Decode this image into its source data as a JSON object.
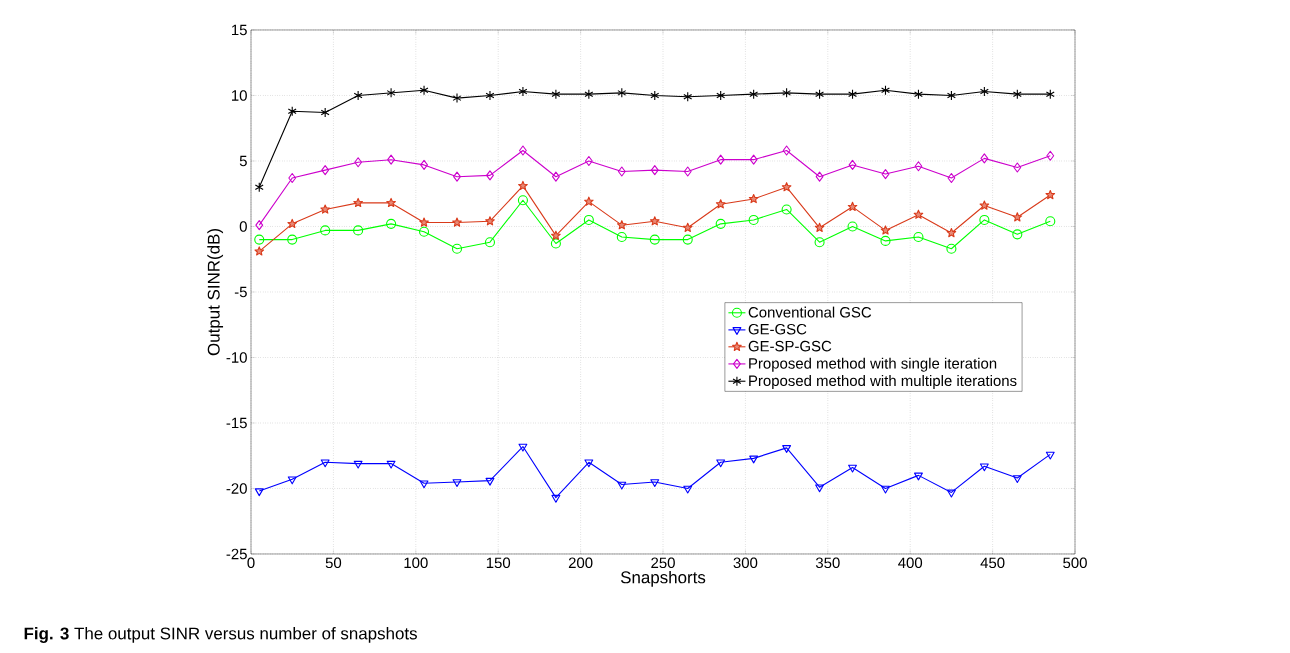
{
  "chart_data": {
    "type": "line",
    "xlabel": "Snapshorts",
    "ylabel": "Output SINR(dB)",
    "annotations": [
      "**Fig. 3** The output SINR versus number of snapshots"
    ],
    "x": [
      5,
      25,
      45,
      65,
      85,
      105,
      125,
      145,
      165,
      185,
      205,
      225,
      245,
      265,
      285,
      305,
      325,
      345,
      365,
      385,
      405,
      425,
      445,
      465,
      485
    ],
    "series": [
      {
        "name": "Conventional GSC",
        "color": "#00ff00",
        "marker": "circle",
        "values": [
          -1.0,
          -1.0,
          -0.3,
          -0.3,
          0.2,
          -0.4,
          -1.7,
          -1.2,
          2.0,
          -1.3,
          0.5,
          -0.8,
          -1.0,
          -1.0,
          0.2,
          0.5,
          1.3,
          -1.2,
          0.0,
          -1.1,
          -0.8,
          -1.7,
          0.5,
          -0.6,
          0.4
        ]
      },
      {
        "name": "GE-GSC",
        "color": "#0000ff",
        "marker": "triangle",
        "values": [
          -20.2,
          -19.3,
          -18.0,
          -18.1,
          -18.1,
          -19.6,
          -19.5,
          -19.4,
          -16.8,
          -20.7,
          -18.0,
          -19.7,
          -19.5,
          -20.0,
          -18.0,
          -17.7,
          -16.9,
          -19.9,
          -18.4,
          -20.0,
          -19.0,
          -20.3,
          -18.3,
          -19.2,
          -17.4
        ]
      },
      {
        "name": "GE-SP-GSC",
        "color": "#d93a1a",
        "marker": "star",
        "values": [
          -1.9,
          0.2,
          1.3,
          1.8,
          1.8,
          0.3,
          0.3,
          0.4,
          3.1,
          -0.7,
          1.9,
          0.1,
          0.4,
          -0.1,
          1.7,
          2.1,
          3.0,
          -0.1,
          1.5,
          -0.3,
          0.9,
          -0.5,
          1.6,
          0.7,
          2.4
        ]
      },
      {
        "name": "Proposed method with single iteration",
        "color": "#cc00cc",
        "marker": "diamond",
        "values": [
          0.1,
          3.7,
          4.3,
          4.9,
          5.1,
          4.7,
          3.8,
          3.9,
          5.8,
          3.8,
          5.0,
          4.2,
          4.3,
          4.2,
          5.1,
          5.1,
          5.8,
          3.8,
          4.7,
          4.0,
          4.6,
          3.7,
          5.2,
          4.5,
          5.4
        ]
      },
      {
        "name": "Proposed method with multiple iterations",
        "color": "#000000",
        "marker": "cross",
        "values": [
          3.0,
          8.8,
          8.7,
          10.0,
          10.2,
          10.4,
          9.8,
          10.0,
          10.3,
          10.1,
          10.1,
          10.2,
          10.0,
          9.9,
          10.0,
          10.1,
          10.2,
          10.1,
          10.1,
          10.4,
          10.1,
          10.0,
          10.3,
          10.1,
          10.1
        ]
      }
    ],
    "xlim": [
      0,
      500
    ],
    "ylim": [
      -25,
      15
    ],
    "xticks": [
      0,
      50,
      100,
      150,
      200,
      250,
      300,
      350,
      400,
      450,
      500
    ],
    "yticks": [
      -25,
      -20,
      -15,
      -10,
      -5,
      0,
      5,
      10,
      15
    ],
    "grid": true,
    "legend": "right",
    "line_style": "solid"
  }
}
